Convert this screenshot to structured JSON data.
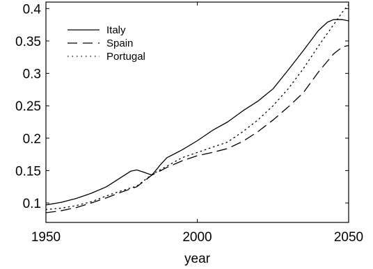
{
  "chart_data": {
    "type": "line",
    "title": "",
    "xlabel": "year",
    "ylabel": "",
    "xlim": [
      1950,
      2050
    ],
    "ylim": [
      0.07,
      0.41
    ],
    "xticks": [
      1950,
      2000,
      2050
    ],
    "yticks": [
      0.1,
      0.15,
      0.2,
      0.25,
      0.3,
      0.35,
      0.4
    ],
    "ytick_labels": [
      "0.1",
      "0.15",
      "0.2",
      "0.25",
      "0.3",
      "0.35",
      "0.4"
    ],
    "grid": false,
    "legend_position": "top-left",
    "series": [
      {
        "name": "Italy",
        "line_style": "solid",
        "x": [
          1950,
          1955,
          1960,
          1965,
          1970,
          1975,
          1978,
          1980,
          1982,
          1985,
          1988,
          1990,
          1995,
          2000,
          2005,
          2010,
          2015,
          2020,
          2025,
          2030,
          2035,
          2040,
          2043,
          2045,
          2048,
          2050
        ],
        "y": [
          0.097,
          0.101,
          0.107,
          0.115,
          0.125,
          0.14,
          0.149,
          0.151,
          0.148,
          0.143,
          0.16,
          0.17,
          0.182,
          0.196,
          0.212,
          0.225,
          0.242,
          0.257,
          0.276,
          0.305,
          0.335,
          0.366,
          0.379,
          0.383,
          0.383,
          0.381
        ]
      },
      {
        "name": "Spain",
        "line_style": "dashed",
        "x": [
          1950,
          1955,
          1960,
          1965,
          1970,
          1975,
          1980,
          1985,
          1990,
          1995,
          2000,
          2005,
          2010,
          2015,
          2020,
          2025,
          2030,
          2035,
          2040,
          2045,
          2048,
          2050
        ],
        "y": [
          0.085,
          0.088,
          0.093,
          0.1,
          0.108,
          0.117,
          0.125,
          0.143,
          0.155,
          0.165,
          0.173,
          0.178,
          0.184,
          0.195,
          0.21,
          0.228,
          0.248,
          0.27,
          0.302,
          0.33,
          0.341,
          0.343
        ]
      },
      {
        "name": "Portugal",
        "line_style": "dotted",
        "x": [
          1950,
          1955,
          1960,
          1965,
          1970,
          1975,
          1980,
          1985,
          1990,
          1995,
          2000,
          2005,
          2010,
          2015,
          2020,
          2025,
          2030,
          2035,
          2040,
          2045,
          2048,
          2050
        ],
        "y": [
          0.09,
          0.092,
          0.096,
          0.102,
          0.111,
          0.119,
          0.126,
          0.144,
          0.157,
          0.17,
          0.178,
          0.186,
          0.194,
          0.21,
          0.228,
          0.25,
          0.276,
          0.307,
          0.342,
          0.375,
          0.395,
          0.406
        ]
      }
    ]
  }
}
